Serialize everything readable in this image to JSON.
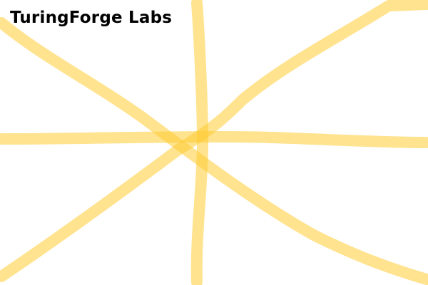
{
  "brand": {
    "title": "TuringForge Labs"
  },
  "canvas": {
    "stroke_color": "#ffcc33",
    "background_color": "#ffffff"
  }
}
